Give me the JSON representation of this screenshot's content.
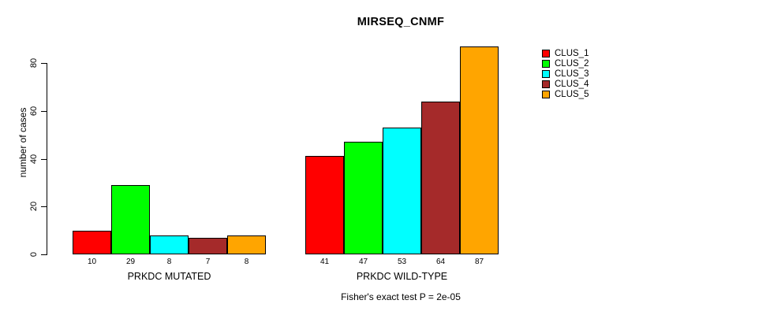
{
  "chart_data": {
    "type": "bar",
    "title": "MIRSEQ_CNMF",
    "ylabel": "number of cases",
    "xlabel": "",
    "ylim": [
      0,
      87
    ],
    "yticks": [
      0,
      20,
      40,
      60,
      80
    ],
    "grid": false,
    "legend_position": "right",
    "series_labels": [
      "CLUS_1",
      "CLUS_2",
      "CLUS_3",
      "CLUS_4",
      "CLUS_5"
    ],
    "colors": [
      "#FF0000",
      "#00FF00",
      "#00FFFF",
      "#A52A2A",
      "#FFA500"
    ],
    "groups": [
      {
        "label": "PRKDC MUTATED",
        "values": [
          10,
          29,
          8,
          7,
          8
        ]
      },
      {
        "label": "PRKDC WILD-TYPE",
        "values": [
          41,
          47,
          53,
          64,
          87
        ]
      }
    ],
    "bar_value_labels": true,
    "footnote": "Fisher's exact test P = 2e-05",
    "background_color": "#FFFFFF",
    "axis_color": "#000000"
  }
}
